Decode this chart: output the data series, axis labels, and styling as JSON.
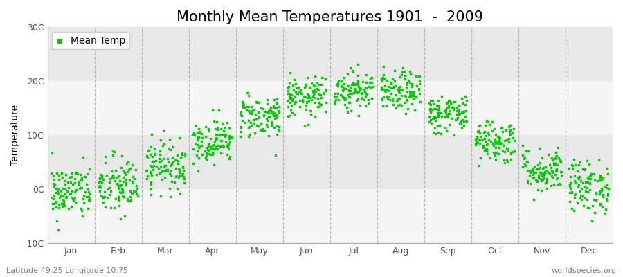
{
  "title": "Monthly Mean Temperatures 1901  -  2009",
  "ylabel": "Temperature",
  "xlabel_labels": [
    "Jan",
    "Feb",
    "Mar",
    "Apr",
    "May",
    "Jun",
    "Jul",
    "Aug",
    "Sep",
    "Oct",
    "Nov",
    "Dec"
  ],
  "subtitle_left": "Latitude 49.25 Longitude 10.75",
  "subtitle_right": "worldspecies.org",
  "ylim": [
    -10,
    30
  ],
  "yticks": [
    -10,
    0,
    10,
    20,
    30
  ],
  "ytick_labels": [
    "-10C",
    "0C",
    "10C",
    "20C",
    "30C"
  ],
  "point_color": "#00cc00",
  "point_size": 3.5,
  "background_color": "#ffffff",
  "plot_bg_color": "#ffffff",
  "band_color_light": "#f5f5f5",
  "band_color_dark": "#e8e8e8",
  "title_fontsize": 15,
  "axis_fontsize": 10,
  "tick_fontsize": 9,
  "subtitle_fontsize": 8,
  "monthly_means": [
    -0.5,
    0.5,
    4.5,
    9.0,
    13.5,
    17.0,
    18.5,
    18.0,
    14.0,
    9.0,
    3.5,
    0.5
  ],
  "monthly_stds": [
    2.5,
    2.8,
    2.2,
    2.0,
    2.0,
    1.8,
    1.8,
    1.8,
    1.8,
    2.0,
    2.0,
    2.5
  ],
  "n_years": 109,
  "seed": 42
}
